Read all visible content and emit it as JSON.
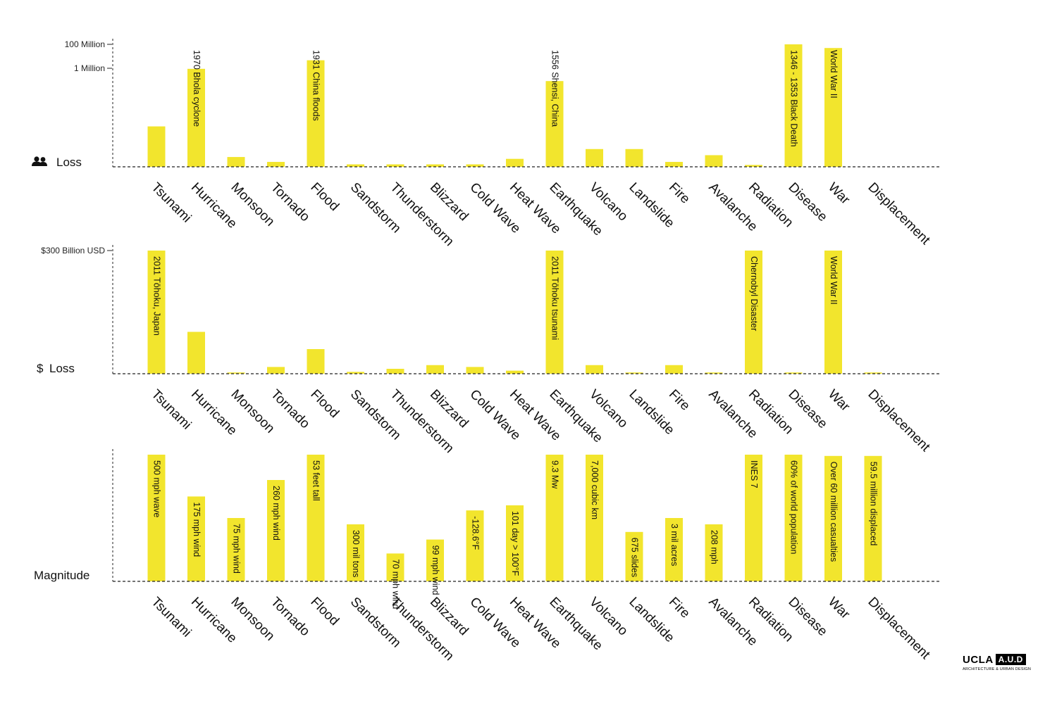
{
  "categories": [
    "Tsunami",
    "Hurricane",
    "Monsoon",
    "Tornado",
    "Flood",
    "Sandstorm",
    "Thunderstorm",
    "Blizzard",
    "Cold Wave",
    "Heat Wave",
    "Earthquake",
    "Volcano",
    "Landslide",
    "Fire",
    "Avalanche",
    "Radiation",
    "Disease",
    "War",
    "Displacement"
  ],
  "colors": {
    "bar": "#f2e52d",
    "axis": "#222222"
  },
  "logo": {
    "main": "UCLA",
    "box": "A.U.D",
    "subtitle": "ARCHITECTURE & URBAN DESIGN"
  },
  "chart_data": [
    {
      "type": "bar",
      "axis_title": "Loss",
      "axis_icon": "people-icon",
      "y_ticks": [
        "100 Million",
        "1 Million"
      ],
      "values": [
        0.33,
        0.8,
        0.08,
        0.04,
        0.87,
        0.02,
        0.02,
        0.02,
        0.02,
        0.065,
        0.7,
        0.145,
        0.145,
        0.04,
        0.095,
        0.015,
        1.0,
        0.97,
        0
      ],
      "value_scale": "relative height, full = 100 Million",
      "bar_labels": [
        "",
        "1970 Bhola cyclone",
        "",
        "",
        "1931 China floods",
        "",
        "",
        "",
        "",
        "",
        "1556 Shensi, China",
        "",
        "",
        "",
        "",
        "",
        "1346 - 1353 Black Death",
        "World War II",
        ""
      ]
    },
    {
      "type": "bar",
      "axis_title": "Loss",
      "axis_icon": "dollar-sign",
      "axis_symbol": "$",
      "y_ticks": [
        "$300 Billion USD"
      ],
      "values": [
        1.0,
        0.34,
        0.01,
        0.055,
        0.2,
        0.015,
        0.04,
        0.07,
        0.055,
        0.025,
        1.0,
        0.07,
        0.01,
        0.07,
        0.01,
        1.0,
        0.01,
        1.0,
        0.01
      ],
      "value_scale": "relative height, full = $300 Billion USD",
      "bar_labels": [
        "2011 Tōhoku, Japan",
        "",
        "",
        "",
        "",
        "",
        "",
        "",
        "",
        "",
        "2011 Tōhoku tsunami",
        "",
        "",
        "",
        "",
        "Chernobyl Disaster",
        "",
        "World War II",
        ""
      ]
    },
    {
      "type": "bar",
      "axis_title": "Magnitude",
      "values": [
        1.0,
        0.67,
        0.5,
        0.8,
        1.0,
        0.45,
        0.22,
        0.33,
        0.56,
        0.6,
        1.0,
        1.0,
        0.39,
        0.5,
        0.45,
        1.0,
        1.0,
        0.99,
        0.99
      ],
      "value_scale": "relative height",
      "bar_labels": [
        "500 mph wave",
        "175 mph wind",
        "75 mph wind",
        "260 mph wind",
        "53 feet tall",
        "300 mil tons",
        "70 mph wind",
        "99 mph wind",
        "-128.6°F",
        "101 day > 100°F",
        "9.3 Mw",
        "7,000 cubic km",
        "675 slides",
        "3 mil acres",
        "208 mph",
        "INES 7",
        "60% of world population",
        "Over 60 million casualties",
        "59.5 million displaced"
      ]
    }
  ]
}
